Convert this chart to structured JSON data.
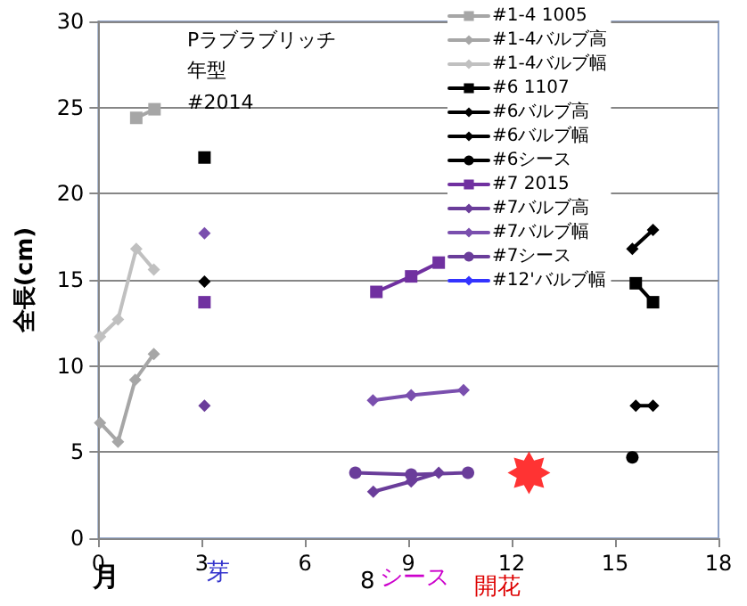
{
  "chart_data": {
    "type": "line",
    "title": "Pラブラブリッチ年型",
    "subtitle": "#2014",
    "xlabel": "月",
    "ylabel": "全長(cm)",
    "annotations": [
      "芽",
      "8",
      "シース",
      "開花"
    ],
    "xlim": [
      0,
      18
    ],
    "xticks": [
      0,
      3,
      6,
      9,
      12,
      15,
      18
    ],
    "ylim": [
      0,
      30
    ],
    "yticks": [
      0,
      5,
      10,
      15,
      20,
      25,
      30
    ],
    "grid": "y",
    "legend": "top right",
    "series": [
      {
        "name": "#1-4 1005",
        "color": "#a6a6a6",
        "marker": "square",
        "x": [
          1.1,
          1.63
        ],
        "values": [
          24.4,
          24.9
        ]
      },
      {
        "name": "#1-4バルブ高",
        "color": "#a6a6a6",
        "marker": "diamond",
        "x": [
          0.05,
          0.57,
          1.07,
          1.61
        ],
        "values": [
          6.7,
          5.6,
          9.2,
          10.7
        ]
      },
      {
        "name": "#1-4バルブ幅",
        "color": "#c0c0c0",
        "marker": "diamond",
        "x": [
          0.05,
          0.57,
          1.1,
          1.61
        ],
        "values": [
          11.7,
          12.7,
          16.8,
          15.6
        ]
      },
      {
        "name": "#6 1107",
        "color": "#000000",
        "marker": "square",
        "x": [
          3.08,
          9,
          15.6,
          16.1
        ],
        "values": [
          22.1,
          null,
          14.8,
          13.7
        ]
      },
      {
        "name": "#6バルブ高",
        "color": "#000000",
        "marker": "diamond",
        "x": [
          15.6,
          16.1
        ],
        "values": [
          7.7,
          7.7
        ]
      },
      {
        "name": "#6バルブ幅",
        "color": "#000000",
        "marker": "diamond",
        "x": [
          3.08,
          9,
          15.5,
          16.1
        ],
        "values": [
          14.9,
          null,
          16.8,
          17.9
        ]
      },
      {
        "name": "#6シース",
        "color": "#000000",
        "marker": "circle",
        "x": [
          15.5
        ],
        "values": [
          4.7
        ]
      },
      {
        "name": "#7 2015",
        "color": "#7030a0",
        "marker": "square",
        "x": [
          3.08,
          6,
          8.07,
          9.08,
          9.88
        ],
        "values": [
          13.7,
          null,
          14.3,
          15.2,
          16.0
        ]
      },
      {
        "name": "#7バルブ高",
        "color": "#6a3d9a",
        "marker": "diamond",
        "x": [
          3.08,
          6,
          7.98,
          9.08,
          9.88
        ],
        "values": [
          7.7,
          null,
          2.7,
          3.3,
          3.8
        ]
      },
      {
        "name": "#7バルブ幅",
        "color": "#7a4fae",
        "marker": "diamond",
        "x": [
          3.08,
          6,
          7.97,
          9.08,
          10.6
        ],
        "values": [
          17.7,
          null,
          8.0,
          8.3,
          8.6
        ]
      },
      {
        "name": "#7シース",
        "color": "#6a3d9a",
        "marker": "circle",
        "x": [
          7.46,
          9.08,
          10.73
        ],
        "values": [
          3.8,
          3.7,
          3.8
        ]
      },
      {
        "name": "#12'バルブ幅",
        "color": "#3333ff",
        "marker": "diamond"
      },
      {
        "type": "scatter",
        "color": "#ff0000",
        "marker": "star",
        "x": [
          12.5
        ],
        "values": [
          3.8
        ]
      }
    ]
  }
}
